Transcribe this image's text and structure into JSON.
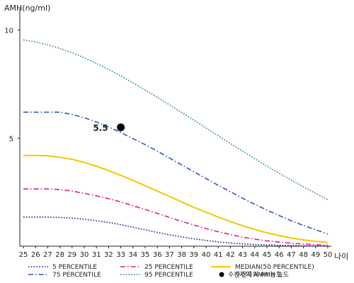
{
  "chart_data": {
    "type": "line",
    "title": "",
    "ylabel": "AMH(ng/ml)",
    "xlabel": "나이",
    "xlim": [
      25,
      50
    ],
    "ylim": [
      0,
      11
    ],
    "x_ticks": [
      25,
      26,
      27,
      28,
      29,
      30,
      31,
      32,
      33,
      34,
      35,
      36,
      37,
      38,
      39,
      40,
      41,
      42,
      43,
      44,
      45,
      46,
      47,
      48,
      49,
      50
    ],
    "y_ticks": [
      5,
      10
    ],
    "grid": false,
    "legend_position": "bottom",
    "x": [
      25,
      26,
      27,
      28,
      29,
      30,
      31,
      32,
      33,
      34,
      35,
      36,
      37,
      38,
      39,
      40,
      41,
      42,
      43,
      44,
      45,
      46,
      47,
      48,
      49,
      50
    ],
    "series": [
      {
        "name": "5 PERCENTILE",
        "color": "#1a1a8c",
        "style": "dotted",
        "values": [
          1.35,
          1.35,
          1.35,
          1.33,
          1.3,
          1.25,
          1.18,
          1.1,
          1.0,
          0.88,
          0.76,
          0.64,
          0.53,
          0.43,
          0.34,
          0.27,
          0.2,
          0.15,
          0.11,
          0.08,
          0.06,
          0.04,
          0.03,
          0.02,
          0.01,
          0.01
        ]
      },
      {
        "name": "25 PERCENTILE",
        "color": "#e0208c",
        "style": "dashdot",
        "values": [
          2.65,
          2.65,
          2.65,
          2.62,
          2.55,
          2.45,
          2.33,
          2.2,
          2.05,
          1.88,
          1.7,
          1.52,
          1.33,
          1.15,
          0.98,
          0.82,
          0.67,
          0.54,
          0.42,
          0.33,
          0.25,
          0.19,
          0.14,
          0.1,
          0.07,
          0.05
        ]
      },
      {
        "name": "MEDIAN(50 PERCENTILE)",
        "color": "#f2c800",
        "style": "solid",
        "values": [
          4.2,
          4.2,
          4.18,
          4.12,
          4.02,
          3.88,
          3.7,
          3.5,
          3.28,
          3.04,
          2.8,
          2.55,
          2.3,
          2.05,
          1.8,
          1.57,
          1.35,
          1.14,
          0.95,
          0.78,
          0.62,
          0.49,
          0.38,
          0.29,
          0.22,
          0.17
        ]
      },
      {
        "name": "75 PERCENTILE",
        "color": "#3355bb",
        "style": "dashdot",
        "values": [
          6.2,
          6.2,
          6.2,
          6.2,
          6.1,
          5.95,
          5.75,
          5.52,
          5.26,
          4.98,
          4.7,
          4.4,
          4.08,
          3.76,
          3.45,
          3.13,
          2.82,
          2.52,
          2.22,
          1.94,
          1.67,
          1.42,
          1.18,
          0.96,
          0.76,
          0.57
        ]
      },
      {
        "name": "95 PERCENTILE",
        "color": "#2e8b57",
        "style": "dotted",
        "values": [
          9.55,
          9.45,
          9.32,
          9.15,
          8.95,
          8.72,
          8.46,
          8.18,
          7.88,
          7.56,
          7.23,
          6.89,
          6.54,
          6.19,
          5.83,
          5.47,
          5.11,
          4.75,
          4.4,
          4.05,
          3.71,
          3.38,
          3.06,
          2.75,
          2.45,
          2.15
        ]
      }
    ],
    "patient": {
      "legend_label": "수진자의 AMH 농도",
      "x": 33,
      "y": 5.5,
      "label": "5.5",
      "color": "#000000"
    }
  }
}
